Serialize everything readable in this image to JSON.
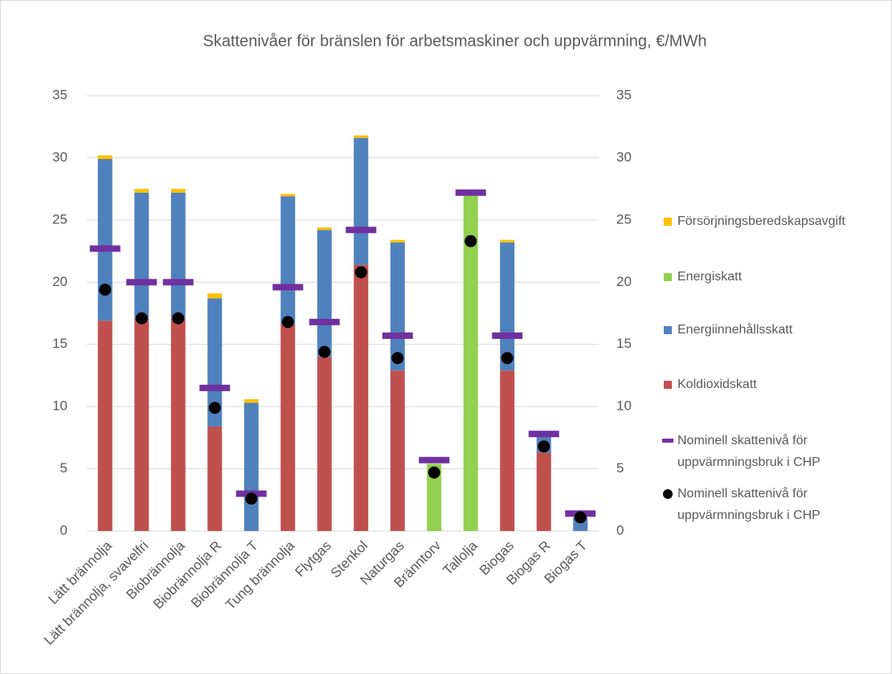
{
  "chart_data": {
    "type": "bar",
    "title": "Skattenivåer för bränslen för arbetsmaskiner och uppvärmning, €/MWh",
    "categories": [
      "Lätt brännolja",
      "Lätt brännolja, svavelfri",
      "Biobrännolja",
      "Biobrännolja R",
      "Biobrännolja T",
      "Tung brännolja",
      "Flytgas",
      "Stenkol",
      "Naturgas",
      "Bränntorv",
      "Tallolja",
      "Biogas",
      "Biogas R",
      "Biogas T"
    ],
    "series": [
      {
        "name": "Koldioxidskatt",
        "color": "#c0504d",
        "kind": "stack",
        "values": [
          16.9,
          17.1,
          17.1,
          8.4,
          0,
          16.6,
          14.0,
          21.4,
          12.9,
          0,
          0,
          12.9,
          6.3,
          0
        ]
      },
      {
        "name": "Energiinnehållsskatt",
        "color": "#4f81bd",
        "kind": "stack",
        "values": [
          13.0,
          10.1,
          10.1,
          10.3,
          10.3,
          10.3,
          10.2,
          10.2,
          10.3,
          0,
          0,
          10.3,
          1.5,
          1.1
        ]
      },
      {
        "name": "Energiskatt",
        "color": "#92d050",
        "kind": "stack",
        "values": [
          0,
          0,
          0,
          0,
          0,
          0,
          0,
          0,
          0,
          5.4,
          27.2,
          0,
          0,
          0
        ]
      },
      {
        "name": "Försörjningsberedskapsavgift",
        "color": "#ffc000",
        "kind": "stack",
        "values": [
          0.3,
          0.3,
          0.3,
          0.4,
          0.3,
          0.2,
          0.2,
          0.2,
          0.2,
          0,
          0,
          0.2,
          0,
          0
        ]
      },
      {
        "name": "Nominell skattenivå för uppvärmningsbruk i CHP",
        "color": "#7030a0",
        "kind": "dash",
        "values": [
          22.7,
          20.0,
          20.0,
          11.5,
          3.0,
          19.6,
          16.8,
          24.2,
          15.7,
          5.7,
          27.2,
          15.7,
          7.8,
          1.4
        ]
      },
      {
        "name": "Nominell skattenivå för uppvärmningsbruk i CHP",
        "color": "#000000",
        "kind": "dot",
        "axis": "y2",
        "values": [
          19.4,
          17.1,
          17.1,
          9.9,
          2.6,
          16.8,
          14.4,
          20.8,
          13.9,
          4.7,
          23.3,
          13.9,
          6.8,
          1.1
        ]
      }
    ],
    "ylim": [
      0,
      35
    ],
    "yticks": [
      0,
      5,
      10,
      15,
      20,
      25,
      30,
      35
    ],
    "y2lim": [
      0,
      35
    ],
    "y2ticks": [
      0,
      5,
      10,
      15,
      20,
      25,
      30,
      35
    ],
    "grid": true,
    "legend": "right"
  }
}
